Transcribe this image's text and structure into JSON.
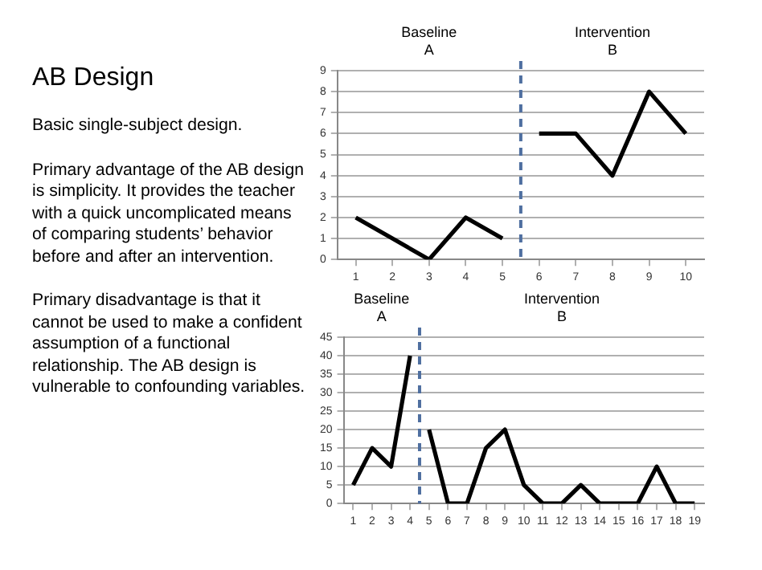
{
  "chart_data": [
    {
      "type": "other",
      "title": "AB Design",
      "annotations": [
        "Basic single-subject design.",
        "Primary advantage of the AB design is simplicity.  It provides the teacher with a quick uncomplicated means of comparing students’ behavior before and after an intervention.",
        "Primary disadvantage is that it cannot be used to make a confident assumption of a functional relationship.  The AB design is vulnerable to confounding variables."
      ]
    },
    {
      "type": "line",
      "xlim": [
        0.5,
        10.5
      ],
      "xticks": [
        1,
        2,
        3,
        4,
        5,
        6,
        7,
        8,
        9,
        10
      ],
      "ylim": [
        0,
        9
      ],
      "yticks": [
        0,
        1,
        2,
        3,
        4,
        5,
        6,
        7,
        8,
        9
      ],
      "grid": "y",
      "marker": "none",
      "line_style": "solid",
      "series": [
        {
          "color": "#000000",
          "x": [
            1,
            2,
            3,
            4,
            5
          ],
          "values": [
            2,
            1,
            0,
            2,
            1
          ]
        },
        {
          "color": "#000000",
          "x": [
            6,
            7,
            8,
            9,
            10
          ],
          "values": [
            6,
            6,
            4,
            8,
            6
          ]
        }
      ],
      "ref_lines": [
        {
          "axis": "x",
          "value": 5.5,
          "color": "#4f6fa0",
          "line_style": "dashed"
        }
      ],
      "annotations": [
        "Baseline\nA",
        "Intervention\nB"
      ]
    },
    {
      "type": "line",
      "xlim": [
        0.5,
        19.5
      ],
      "xticks": [
        1,
        2,
        3,
        4,
        5,
        6,
        7,
        8,
        9,
        10,
        11,
        12,
        13,
        14,
        15,
        16,
        17,
        18,
        19
      ],
      "ylim": [
        0,
        45
      ],
      "yticks": [
        0,
        5,
        10,
        15,
        20,
        25,
        30,
        35,
        40,
        45
      ],
      "grid": "y",
      "marker": "none",
      "line_style": "solid",
      "series": [
        {
          "color": "#000000",
          "x": [
            1,
            2,
            3,
            4
          ],
          "values": [
            5,
            15,
            10,
            40
          ]
        },
        {
          "color": "#000000",
          "x": [
            5,
            6,
            7,
            8,
            9,
            10,
            11,
            12,
            13,
            14,
            15,
            16,
            17,
            18,
            19
          ],
          "values": [
            20,
            0,
            0,
            15,
            20,
            5,
            0,
            0,
            5,
            0,
            0,
            0,
            10,
            0,
            0
          ]
        }
      ],
      "ref_lines": [
        {
          "axis": "x",
          "value": 4.5,
          "color": "#4f6fa0",
          "line_style": "dashed"
        }
      ],
      "annotations": [
        "Baseline\nA",
        "Intervention\nB"
      ]
    }
  ]
}
